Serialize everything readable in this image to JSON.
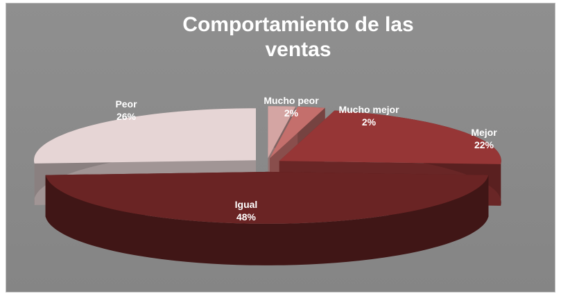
{
  "chart_data": {
    "type": "pie3d",
    "title": "Comportamiento de las ventas",
    "categories": [
      "Mucho peor",
      "Mucho mejor",
      "Mejor",
      "Igual",
      "Peor"
    ],
    "values": [
      2,
      2,
      22,
      48,
      26
    ],
    "value_labels": [
      "2%",
      "2%",
      "22%",
      "48%",
      "26%"
    ],
    "colors": [
      "#d4a5a3",
      "#c46f6c",
      "#963636",
      "#6a2424",
      "#e6d5d5"
    ]
  }
}
